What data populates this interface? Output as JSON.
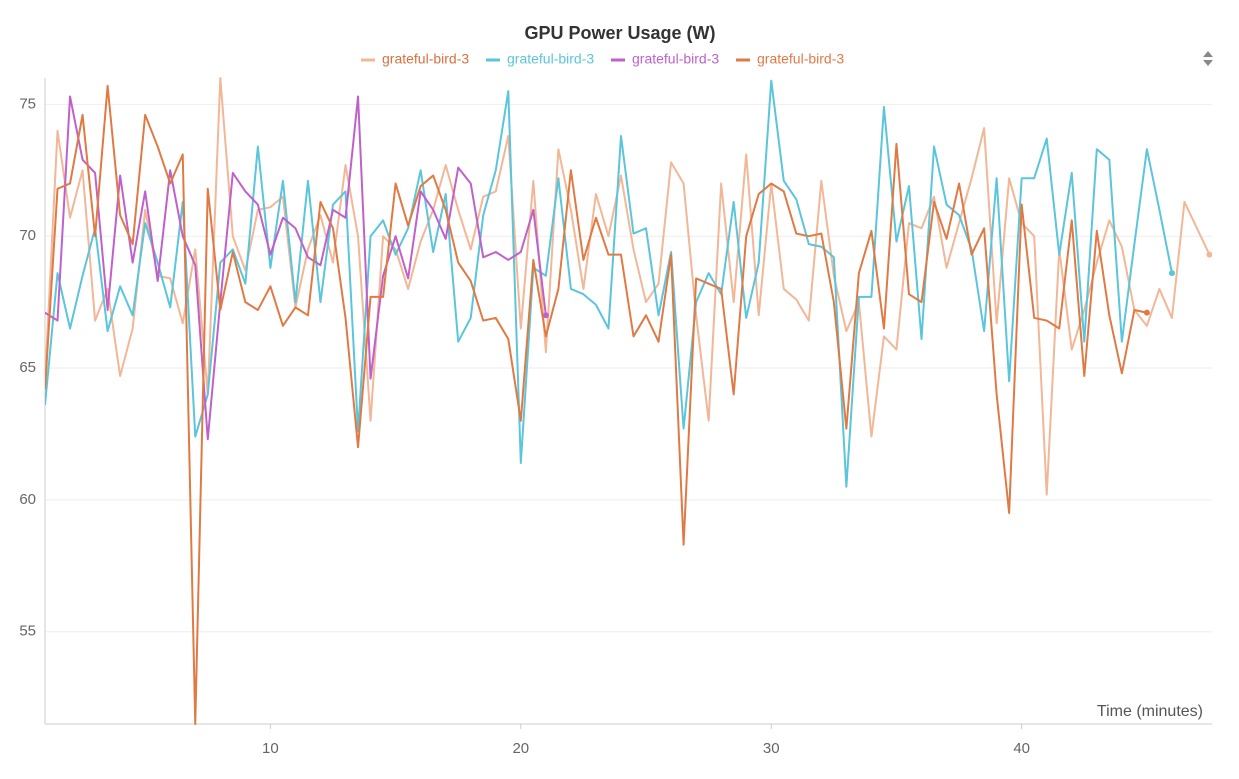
{
  "chart_data": {
    "type": "line",
    "title": "GPU Power Usage (W)",
    "x_label": "Time (minutes)",
    "x": [
      1,
      1.5,
      2,
      2.5,
      3,
      3.5,
      4,
      4.5,
      5,
      5.5,
      6,
      6.5,
      7,
      7.5,
      8,
      8.5,
      9,
      9.5,
      10,
      10.5,
      11,
      11.5,
      12,
      12.5,
      13,
      13.5,
      14,
      14.5,
      15,
      15.5,
      16,
      16.5,
      17,
      17.5,
      18,
      18.5,
      19,
      19.5,
      20,
      20.5,
      21,
      21.5,
      22,
      22.5,
      23,
      23.5,
      24,
      24.5,
      25,
      25.5,
      26,
      26.5,
      27,
      27.5,
      28,
      28.5,
      29,
      29.5,
      30,
      30.5,
      31,
      31.5,
      32,
      32.5,
      33,
      33.5,
      34,
      34.5,
      35,
      35.5,
      36,
      36.5,
      37,
      37.5,
      38,
      38.5,
      39,
      39.5,
      40,
      40.5,
      41,
      41.5,
      42,
      42.5,
      43,
      43.5,
      44,
      44.5,
      45,
      45.5,
      46,
      46.5,
      47,
      47.5
    ],
    "series": [
      {
        "name": "grateful-bird-3",
        "color": "#f2b796",
        "values": [
          64.5,
          74,
          70.7,
          72.5,
          66.8,
          68,
          64.7,
          66.5,
          71,
          68.5,
          68.4,
          66.7,
          69.5,
          64,
          76,
          70,
          68.7,
          71,
          71.1,
          71.5,
          67.3,
          69.5,
          70.8,
          69,
          72.7,
          70,
          63,
          70,
          69.5,
          68,
          69.8,
          71,
          72.7,
          71,
          69.5,
          71.5,
          71.7,
          73.8,
          66.5,
          72.1,
          65.6,
          73.3,
          71,
          68,
          71.6,
          70,
          72.3,
          69.5,
          67.5,
          68.2,
          72.8,
          72,
          67,
          63,
          72,
          67.5,
          73.1,
          67,
          72,
          68,
          67.6,
          66.8,
          72.1,
          68.5,
          66.4,
          67.5,
          62.4,
          66.2,
          65.7,
          70.5,
          70.3,
          71.5,
          68.8,
          70.5,
          72.2,
          74.1,
          66.7,
          72.2,
          70.5,
          70,
          60.2,
          69.5,
          65.7,
          67.2,
          69,
          70.6,
          69.6,
          67.2,
          66.6,
          68,
          66.9,
          71.3,
          70.3,
          69.3
        ]
      },
      {
        "name": "grateful-bird-3",
        "color": "#5bc5db",
        "values": [
          63.6,
          68.6,
          66.5,
          68.5,
          70.3,
          66.4,
          68.1,
          67,
          70.5,
          69,
          67.3,
          71.3,
          62.4,
          64,
          69,
          69.5,
          68.2,
          73.4,
          68.8,
          72.1,
          67.5,
          72.1,
          67.5,
          71.2,
          71.7,
          62.6,
          70,
          70.6,
          69.3,
          70.3,
          72.5,
          69.4,
          71.6,
          66,
          66.9,
          70.8,
          72.5,
          75.5,
          61.4,
          68.8,
          68.5,
          72.2,
          68,
          67.8,
          67.4,
          66.5,
          73.8,
          70.1,
          70.3,
          67,
          69.4,
          62.7,
          67.5,
          68.6,
          67.8,
          71.3,
          66.9,
          69,
          75.9,
          72.1,
          71.4,
          69.7,
          69.6,
          69.2,
          60.5,
          67.7,
          67.7,
          74.9,
          69.8,
          71.9,
          66.1,
          73.4,
          71.2,
          70.8,
          69.5,
          66.4,
          72.2,
          64.5,
          72.2,
          72.2,
          73.7,
          69.3,
          72.4,
          66,
          73.3,
          72.9,
          66,
          69.7,
          73.3,
          71,
          68.6,
          null,
          null,
          null
        ]
      },
      {
        "name": "grateful-bird-3",
        "color": "#c061cb",
        "values": [
          67.1,
          66.8,
          75.3,
          72.9,
          72.4,
          67.2,
          72.3,
          69,
          71.7,
          68.3,
          72.5,
          70,
          68.9,
          62.3,
          67.5,
          72.4,
          71.7,
          71.2,
          69.3,
          70.7,
          70.3,
          69.2,
          68.9,
          71,
          70.7,
          75.3,
          64.6,
          68.5,
          70,
          68.4,
          71.7,
          71,
          69.9,
          72.6,
          72,
          69.2,
          69.4,
          69.1,
          69.4,
          71,
          67,
          null,
          null,
          null,
          null,
          null,
          null,
          null,
          null,
          null,
          null,
          null,
          null,
          null,
          null,
          null,
          null,
          null,
          null,
          null,
          null,
          null,
          null,
          null,
          null,
          null,
          null,
          null,
          null,
          null,
          null,
          null,
          null,
          null,
          null,
          null,
          null,
          null,
          null,
          null,
          null,
          null,
          null,
          null,
          null,
          null,
          null,
          null,
          null,
          null,
          null,
          null,
          null,
          null
        ]
      },
      {
        "name": "grateful-bird-3",
        "color": "#e07a45",
        "values": [
          64.2,
          71.8,
          72,
          74.6,
          70,
          75.7,
          70.8,
          69.7,
          74.6,
          73.4,
          72,
          73.1,
          51.5,
          71.8,
          67.2,
          69.4,
          67.5,
          67.2,
          68.1,
          66.6,
          67.3,
          67,
          71.3,
          70.3,
          66.9,
          62,
          67.7,
          67.7,
          72,
          70.4,
          71.9,
          72.3,
          71,
          69,
          68.3,
          66.8,
          66.9,
          66.1,
          63,
          69.1,
          66.2,
          68,
          72.5,
          69.1,
          70.7,
          69.3,
          69.3,
          66.2,
          67,
          66,
          69.3,
          58.3,
          68.4,
          68.2,
          68,
          64,
          70,
          71.6,
          72,
          71.7,
          70.1,
          70,
          70.1,
          67.5,
          62.7,
          68.6,
          70.2,
          66.5,
          73.5,
          67.8,
          67.5,
          71.3,
          69.9,
          72,
          69.3,
          70.3,
          64,
          59.5,
          71.2,
          66.9,
          66.8,
          66.5,
          70.6,
          64.7,
          70.2,
          67,
          64.8,
          67.2,
          67.1,
          null,
          null,
          null,
          null,
          null
        ]
      }
    ],
    "xlim": [
      1,
      47.6
    ],
    "ylim": [
      51.5,
      76
    ],
    "xticks": [
      10,
      20,
      30,
      40
    ],
    "yticks": [
      55,
      60,
      65,
      70,
      75
    ],
    "grid": true
  }
}
